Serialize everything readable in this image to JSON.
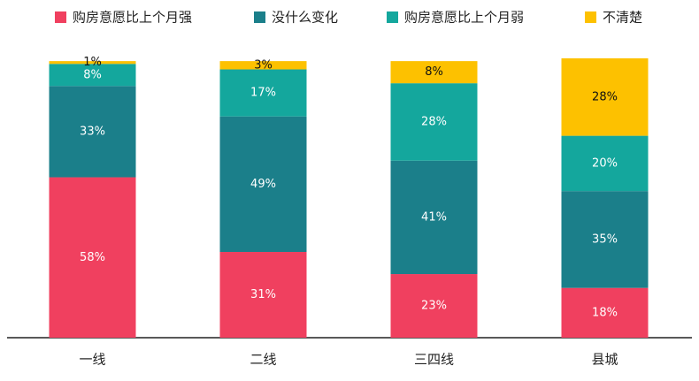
{
  "chart_data": {
    "type": "stacked_bar",
    "categories": [
      "一线",
      "二线",
      "三四线",
      "县城"
    ],
    "series": [
      {
        "name": "购房意愿比上个月强",
        "color": "#f0405f",
        "values": [
          58,
          31,
          23,
          18
        ],
        "value_labels": [
          "58%",
          "31%",
          "23%",
          "18%"
        ]
      },
      {
        "name": "没什么变化",
        "color": "#1b7f8a",
        "values": [
          33,
          49,
          41,
          35
        ],
        "value_labels": [
          "33%",
          "49%",
          "41%",
          "35%"
        ]
      },
      {
        "name": "购房意愿比上个月弱",
        "color": "#14a79d",
        "values": [
          8,
          17,
          28,
          20
        ],
        "value_labels": [
          "8%",
          "17%",
          "28%",
          "20%"
        ]
      },
      {
        "name": "不清楚",
        "color": "#fdc100",
        "values": [
          1,
          3,
          8,
          28
        ],
        "value_labels": [
          "1%",
          "3%",
          "8%",
          "28%"
        ]
      }
    ]
  }
}
